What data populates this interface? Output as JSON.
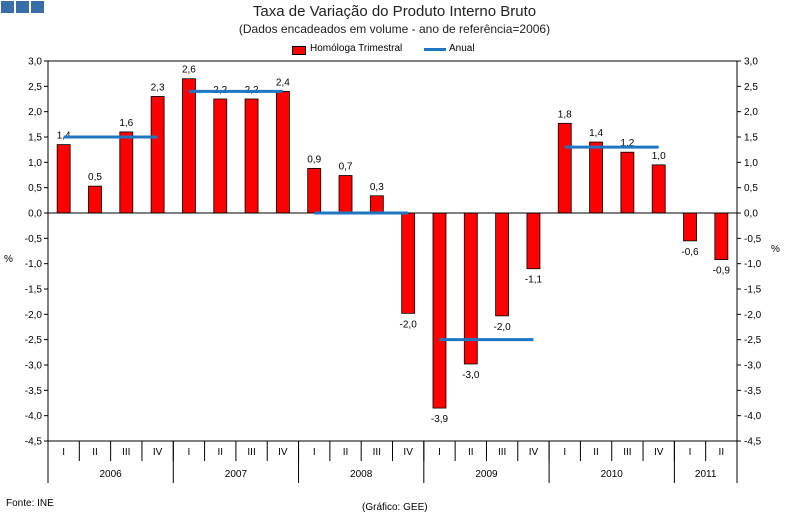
{
  "title": "Taxa de Variação do Produto Interno Bruto",
  "subtitle": "(Dados encadeados em volume - ano de referência=2006)",
  "footer": {
    "source": "Fonte: INE",
    "credit": "(Gráfico: GEE)"
  },
  "colors": {
    "bar": "#ff0000",
    "line": "#1f77c4",
    "logo": "#3a6ea8"
  },
  "chart_data": {
    "type": "bar",
    "title": "Taxa de Variação do Produto Interno Bruto",
    "ylabel": "%",
    "ylabel_right": "%",
    "ylim": [
      -4.5,
      3.0
    ],
    "ystep": 0.5,
    "legend_position": "top-center",
    "quarters": [
      "I",
      "II",
      "III",
      "IV",
      "I",
      "II",
      "III",
      "IV",
      "I",
      "II",
      "III",
      "IV",
      "I",
      "II",
      "III",
      "IV",
      "I",
      "II",
      "III",
      "IV",
      "I",
      "II"
    ],
    "years": [
      {
        "label": "2006",
        "count": 4
      },
      {
        "label": "2007",
        "count": 4
      },
      {
        "label": "2008",
        "count": 4
      },
      {
        "label": "2009",
        "count": 4
      },
      {
        "label": "2010",
        "count": 4
      },
      {
        "label": "2011",
        "count": 2
      }
    ],
    "series": [
      {
        "name": "Homóloga Trimestral",
        "type": "bar",
        "values": [
          1.35,
          0.53,
          1.6,
          2.3,
          2.65,
          2.25,
          2.25,
          2.4,
          0.88,
          0.74,
          0.34,
          -1.98,
          -3.85,
          -2.98,
          -2.03,
          -1.1,
          1.77,
          1.4,
          1.2,
          0.95,
          -0.55,
          -0.92
        ],
        "labels": [
          "1,4",
          "0,5",
          "1,6",
          "2,3",
          "2,6",
          "2,2",
          "2,2",
          "2,4",
          "0,9",
          "0,7",
          "0,3",
          "-2,0",
          "-3,9",
          "-3,0",
          "-2,0",
          "-1,1",
          "1,8",
          "1,4",
          "1,2",
          "1,0",
          "-0,6",
          "-0,9"
        ]
      },
      {
        "name": "Anual",
        "type": "line",
        "segments": [
          {
            "year": "2006",
            "value": 1.5
          },
          {
            "year": "2007",
            "value": 2.4
          },
          {
            "year": "2008",
            "value": 0.0
          },
          {
            "year": "2009",
            "value": -2.5
          },
          {
            "year": "2010",
            "value": 1.3
          }
        ]
      }
    ]
  }
}
